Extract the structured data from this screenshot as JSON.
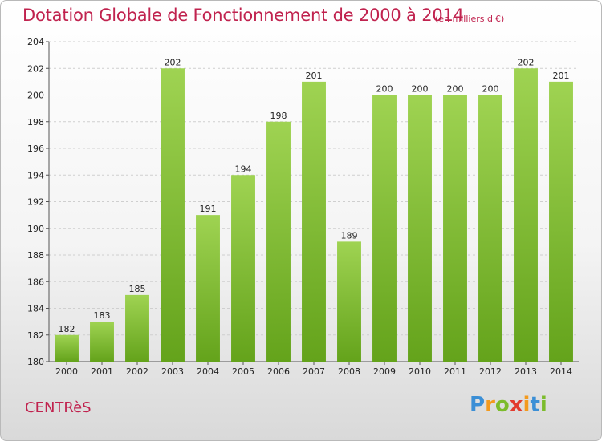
{
  "chart_data": {
    "type": "bar",
    "title": "Dotation Globale de Fonctionnement de 2000 à 2014",
    "unit_label": "(en milliers d'€)",
    "categories": [
      "2000",
      "2001",
      "2002",
      "2003",
      "2004",
      "2005",
      "2006",
      "2007",
      "2008",
      "2009",
      "2010",
      "2011",
      "2012",
      "2013",
      "2014"
    ],
    "values": [
      182,
      183,
      185,
      202,
      191,
      194,
      198,
      201,
      189,
      200,
      200,
      200,
      200,
      202,
      201
    ],
    "ylim": [
      180,
      204
    ],
    "yticks": [
      180,
      182,
      184,
      186,
      188,
      190,
      192,
      194,
      196,
      198,
      200,
      202,
      204
    ],
    "grid": true,
    "bar_color_top": "#9fd352",
    "bar_color_bottom": "#64a31b"
  },
  "commune": "CENTRèS",
  "logo": {
    "letters": [
      "P",
      "r",
      "o",
      "x",
      "i",
      "t",
      "i"
    ],
    "colors": [
      "#3b8fd6",
      "#f39a1e",
      "#7cbc2c",
      "#e23b2e",
      "#f39a1e",
      "#3b8fd6",
      "#7cbc2c"
    ]
  }
}
